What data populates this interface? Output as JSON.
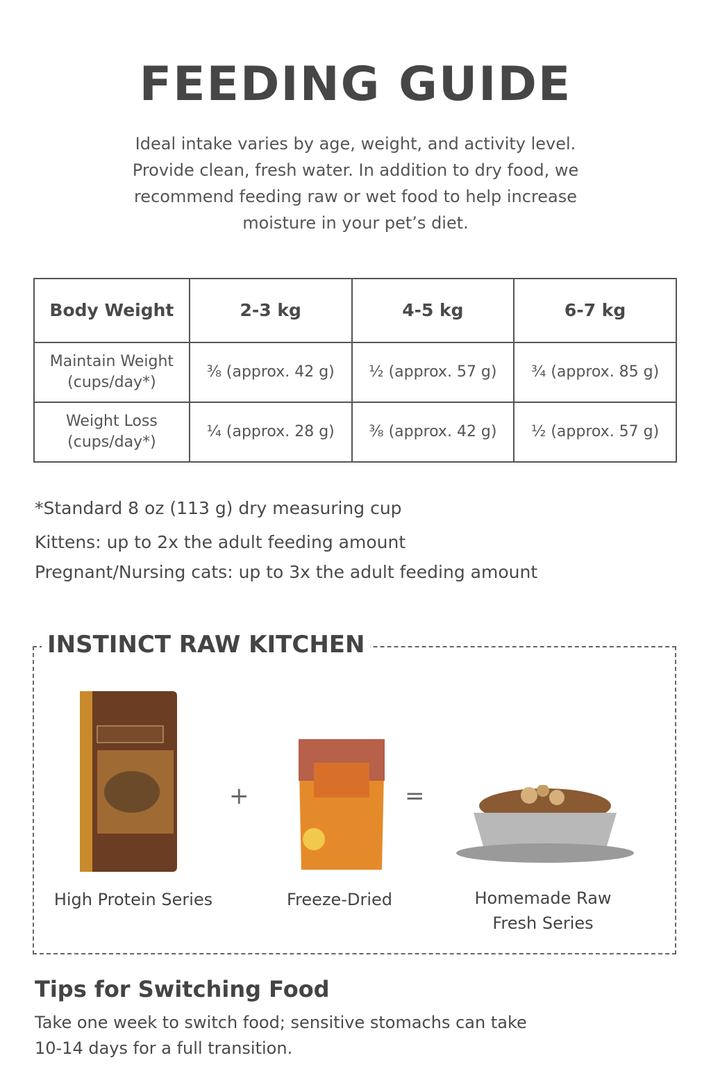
{
  "header": {
    "title": "FEEDING GUIDE",
    "intro": [
      "Ideal intake varies by age, weight, and activity level.",
      "Provide clean, fresh water. In addition to dry food, we",
      "recommend feeding raw or wet food to help increase",
      "moisture in your pet’s diet."
    ]
  },
  "table": {
    "header": [
      "Body Weight",
      "2-3 kg",
      "4-5 kg",
      "6-7 kg"
    ],
    "rows": [
      [
        "Maintain Weight\n(cups/day*)",
        "⅜ (approx. 42 g)",
        "½ (approx. 57 g)",
        "¾ (approx. 85 g)"
      ],
      [
        "Weight Loss\n(cups/day*)",
        "¼ (approx. 28 g)",
        "⅜ (approx. 42 g)",
        "½ (approx. 57 g)"
      ]
    ]
  },
  "notes": [
    "*Standard 8 oz (113 g) dry measuring cup",
    "Kittens: up to 2x the adult feeding amount",
    "Pregnant/Nursing cats: up to 3x the adult feeding amount"
  ],
  "kitchen": {
    "title": "INSTINCT RAW KITCHEN",
    "plus": "+",
    "equals": "=",
    "products": [
      "High Protein Series",
      "Freeze-Dried",
      "Homemade Raw\nFresh Series"
    ]
  },
  "tips": {
    "title": "Tips for Switching Food",
    "lines": [
      "Take one week to switch food; sensitive stomachs can take",
      "10-14 days for a full transition."
    ]
  }
}
